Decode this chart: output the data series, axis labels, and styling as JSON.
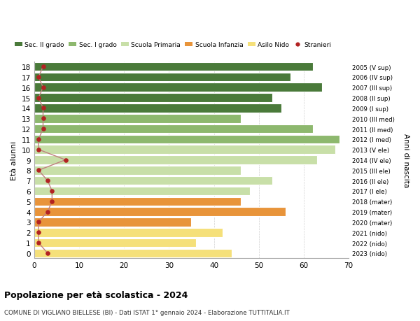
{
  "ages": [
    18,
    17,
    16,
    15,
    14,
    13,
    12,
    11,
    10,
    9,
    8,
    7,
    6,
    5,
    4,
    3,
    2,
    1,
    0
  ],
  "bar_values": [
    62,
    57,
    64,
    53,
    55,
    46,
    62,
    68,
    67,
    63,
    46,
    53,
    48,
    46,
    56,
    35,
    42,
    36,
    44
  ],
  "stranieri_values": [
    2,
    1,
    2,
    1,
    2,
    2,
    2,
    1,
    1,
    7,
    1,
    3,
    4,
    4,
    3,
    1,
    1,
    1,
    3
  ],
  "bar_colors": [
    "#4a7a3a",
    "#4a7a3a",
    "#4a7a3a",
    "#4a7a3a",
    "#4a7a3a",
    "#8db86e",
    "#8db86e",
    "#8db86e",
    "#c8dfa8",
    "#c8dfa8",
    "#c8dfa8",
    "#c8dfa8",
    "#c8dfa8",
    "#e8943a",
    "#e8943a",
    "#e8943a",
    "#f5e07a",
    "#f5e07a",
    "#f5e07a"
  ],
  "right_labels": [
    "2005 (V sup)",
    "2006 (IV sup)",
    "2007 (III sup)",
    "2008 (II sup)",
    "2009 (I sup)",
    "2010 (III med)",
    "2011 (II med)",
    "2012 (I med)",
    "2013 (V ele)",
    "2014 (IV ele)",
    "2015 (III ele)",
    "2016 (II ele)",
    "2017 (I ele)",
    "2018 (mater)",
    "2019 (mater)",
    "2020 (mater)",
    "2021 (nido)",
    "2022 (nido)",
    "2023 (nido)"
  ],
  "legend_labels": [
    "Sec. II grado",
    "Sec. I grado",
    "Scuola Primaria",
    "Scuola Infanzia",
    "Asilo Nido",
    "Stranieri"
  ],
  "legend_colors": [
    "#4a7a3a",
    "#8db86e",
    "#c8dfa8",
    "#e8943a",
    "#f5e07a",
    "#b22222"
  ],
  "ylabel": "Età alunni",
  "right_ylabel": "Anni di nascita",
  "title1": "Popolazione per età scolastica - 2024",
  "title2": "COMUNE DI VIGLIANO BIELLESE (BI) - Dati ISTAT 1° gennaio 2024 - Elaborazione TUTTITALIA.IT",
  "xlim": [
    0,
    70
  ],
  "xticks": [
    0,
    10,
    20,
    30,
    40,
    50,
    60,
    70
  ],
  "background_color": "#ffffff",
  "grid_color": "#d0d0d0",
  "stranieri_color": "#b22222",
  "stranieri_line_color": "#c08080"
}
